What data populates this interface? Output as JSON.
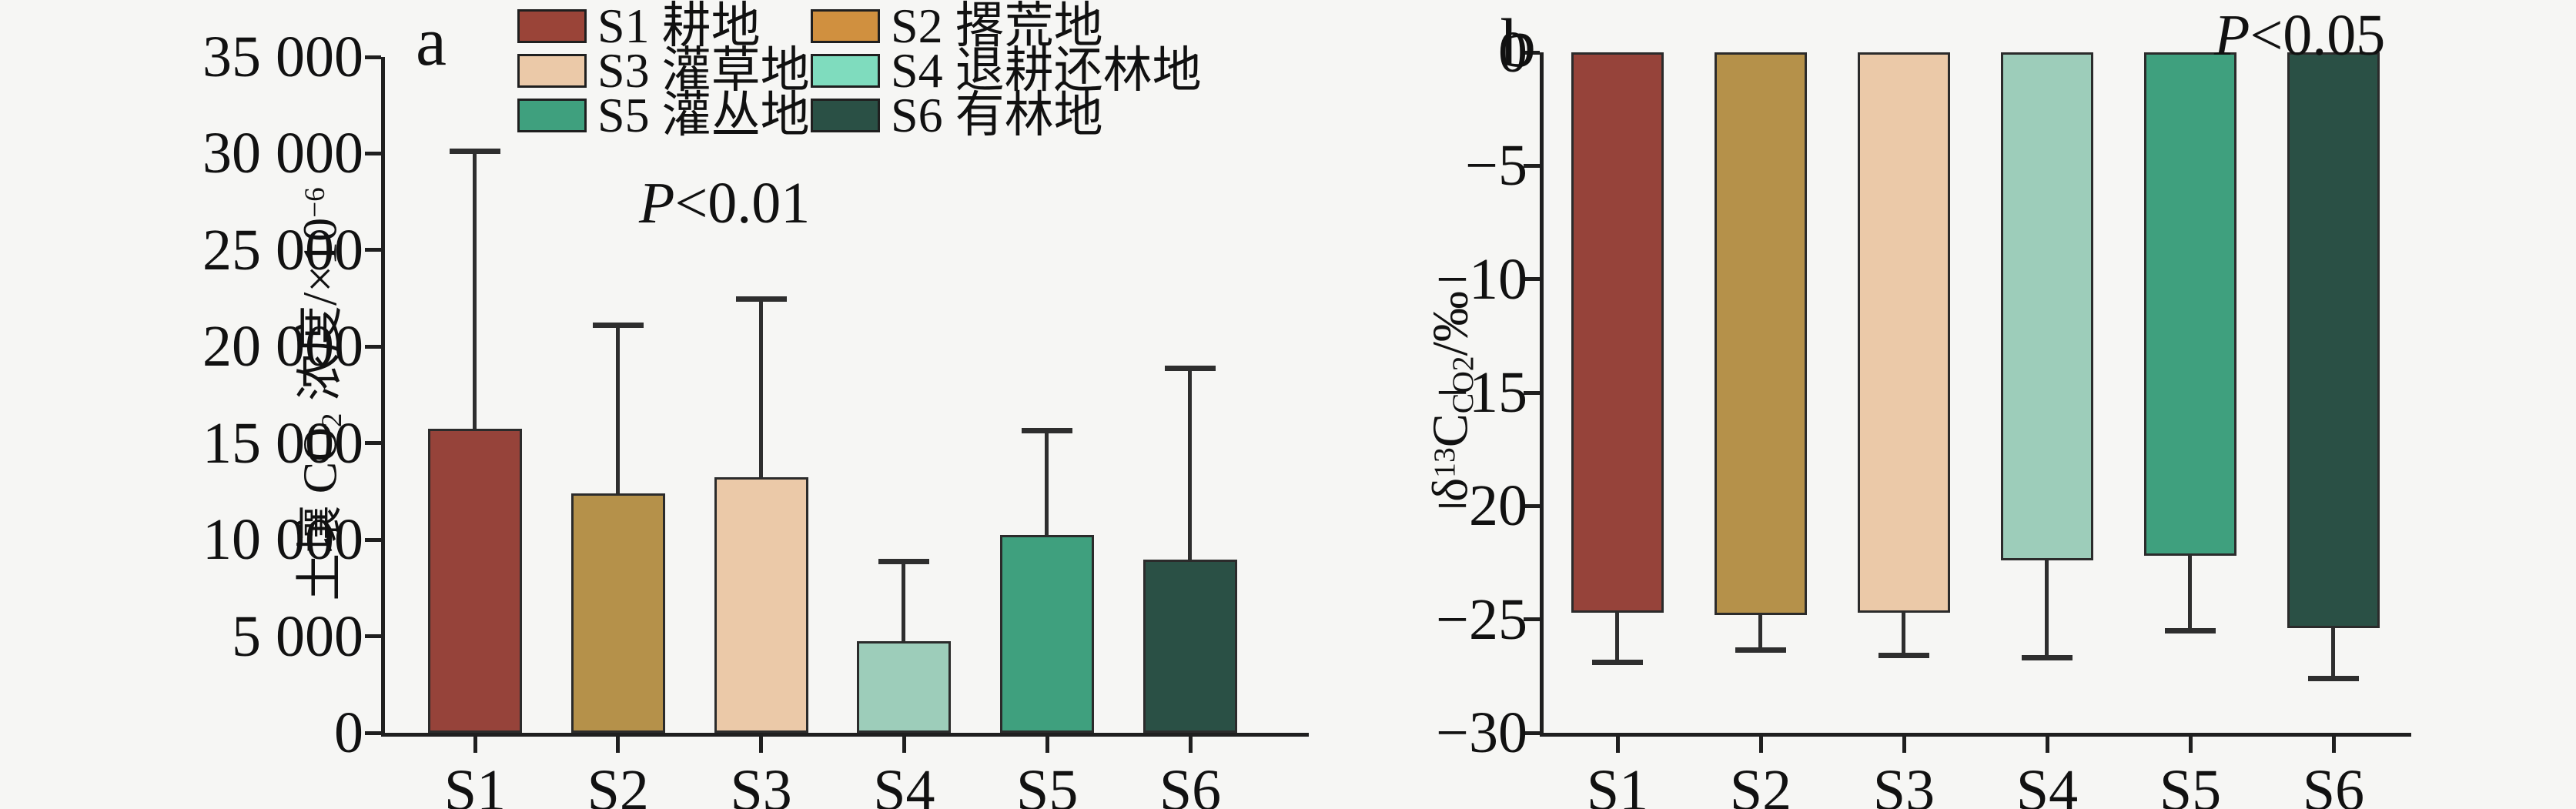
{
  "figure": {
    "background": "#f6f6f4",
    "axis_color": "#1f1f1f",
    "error_bar_color": "#2e2e2e"
  },
  "legend": {
    "items": [
      {
        "key": "S1",
        "name": "耕地",
        "swatch_color": "#9a4438"
      },
      {
        "key": "S2",
        "name": "撂荒地",
        "swatch_color": "#d0903f"
      },
      {
        "key": "S3",
        "name": "灌草地",
        "swatch_color": "#ebc9a8"
      },
      {
        "key": "S4",
        "name": "退耕还林地",
        "swatch_color": "#7fdcbe"
      },
      {
        "key": "S5",
        "name": "灌丛地",
        "swatch_color": "#3fa07e"
      },
      {
        "key": "S6",
        "name": "有林地",
        "swatch_color": "#2a5045"
      }
    ]
  },
  "chart_data": [
    {
      "type": "bar",
      "panel_label": "a",
      "title": "",
      "annotation_p": "P",
      "annotation_rest": "<0.01",
      "xlabel": "",
      "ylabel": "土壤 CO₂ 浓度/×10⁻⁶",
      "ylabel_parts": [
        {
          "t": "土壤 CO"
        },
        {
          "t": "2",
          "p": "sub"
        },
        {
          "t": " 浓度/×10"
        },
        {
          "t": "−6",
          "p": "sup"
        }
      ],
      "categories": [
        "S1",
        "S2",
        "S3",
        "S4",
        "S5",
        "S6"
      ],
      "values": [
        15750,
        12400,
        13250,
        4750,
        10250,
        8950
      ],
      "error_direction": "up",
      "error_values": [
        30100,
        21100,
        22450,
        8850,
        15650,
        18880
      ],
      "ylim": [
        0,
        35000
      ],
      "ytick_values": [
        0,
        5000,
        10000,
        15000,
        20000,
        25000,
        30000,
        35000
      ],
      "ytick_labels": [
        "0",
        "5 000",
        "10 000",
        "15 000",
        "20 000",
        "25 000",
        "30 000",
        "35 000"
      ],
      "grid": false,
      "legend_position": "top-inside",
      "bar_colors": [
        "#96433a",
        "#b5914a",
        "#ebc9a8",
        "#9dcdba",
        "#3fa07e",
        "#2a5045"
      ]
    },
    {
      "type": "bar",
      "panel_label": "b",
      "title": "",
      "annotation_p": "P",
      "annotation_rest": "<0.05",
      "xlabel": "",
      "ylabel": "δ¹³C_CO₂/‰",
      "ylabel_parts": [
        {
          "t": "δ"
        },
        {
          "t": "13",
          "p": "sup"
        },
        {
          "t": "C"
        },
        {
          "t": "CO2",
          "p": "sub"
        },
        {
          "t": "/‰"
        }
      ],
      "categories": [
        "S1",
        "S2",
        "S3",
        "S4",
        "S5",
        "S6"
      ],
      "values": [
        -24.7,
        -24.8,
        -24.7,
        -22.4,
        -22.2,
        -25.4
      ],
      "error_direction": "down",
      "error_values": [
        -26.9,
        -26.35,
        -26.6,
        -26.7,
        -25.5,
        -27.6
      ],
      "ylim": [
        -30,
        0
      ],
      "ytick_values": [
        0,
        -5,
        -10,
        -15,
        -20,
        -25,
        -30
      ],
      "ytick_labels": [
        "0",
        "−5",
        "−10",
        "−15",
        "−20",
        "−25",
        "−30"
      ],
      "grid": false,
      "legend_position": "none",
      "bar_colors": [
        "#96433a",
        "#b5914a",
        "#ebc9a8",
        "#9dcdba",
        "#3fa07e",
        "#2a5045"
      ]
    }
  ]
}
